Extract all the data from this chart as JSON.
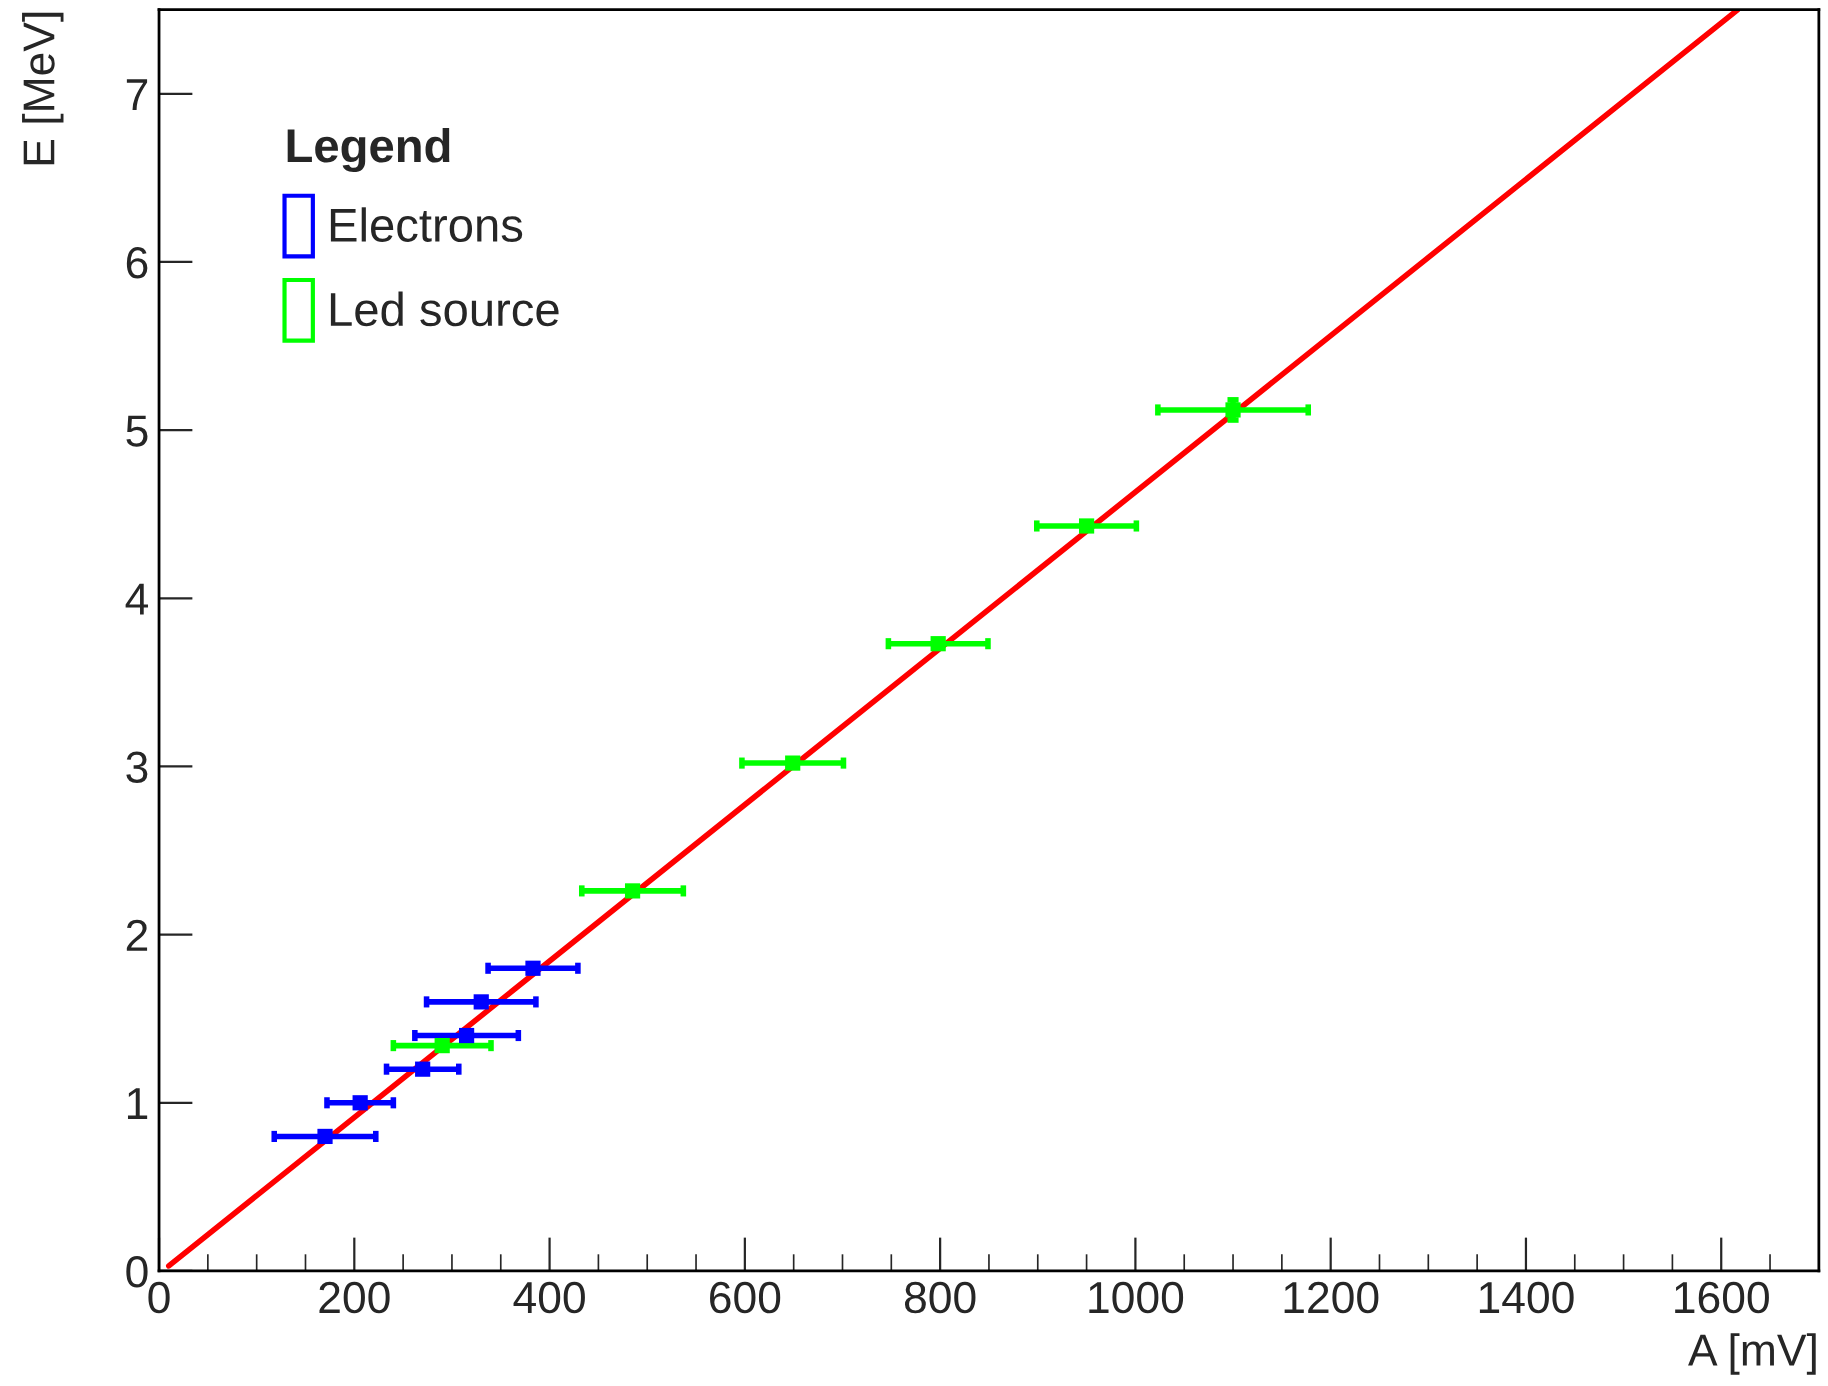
{
  "chart_data": {
    "type": "scatter",
    "xlabel": "A [mV]",
    "ylabel": "E [MeV]",
    "legend_title": "Legend",
    "legend": "top left",
    "grid": false,
    "marker": "square",
    "xlim": [
      0,
      1700
    ],
    "xticks": [
      0,
      200,
      400,
      600,
      800,
      1000,
      1200,
      1400,
      1600
    ],
    "ylim": [
      0,
      7.5
    ],
    "yticks": [
      0,
      1,
      2,
      3,
      4,
      5,
      6,
      7
    ],
    "series": [
      {
        "name": "Electrons",
        "color": "#0000ff",
        "type": "scatter",
        "x": [
          170,
          206,
          270,
          315,
          330,
          383
        ],
        "values": [
          0.8,
          1.0,
          1.2,
          1.4,
          1.6,
          1.8
        ],
        "xerrors": [
          52,
          34,
          37,
          53,
          56,
          46
        ]
      },
      {
        "name": "Led source",
        "color": "#00ff00",
        "type": "scatter",
        "x": [
          290,
          485,
          649,
          798,
          950,
          1100
        ],
        "values": [
          1.34,
          2.26,
          3.02,
          3.73,
          4.43,
          5.12
        ],
        "xerrors": [
          50,
          52,
          52,
          51,
          51,
          77
        ],
        "errors": [
          null,
          null,
          null,
          null,
          null,
          0.06
        ]
      },
      {
        "color": "#ff0000",
        "type": "line",
        "line_style": "solid",
        "marker": "none",
        "x": [
          10,
          1617
        ],
        "values": [
          0.03,
          7.5
        ]
      }
    ]
  }
}
